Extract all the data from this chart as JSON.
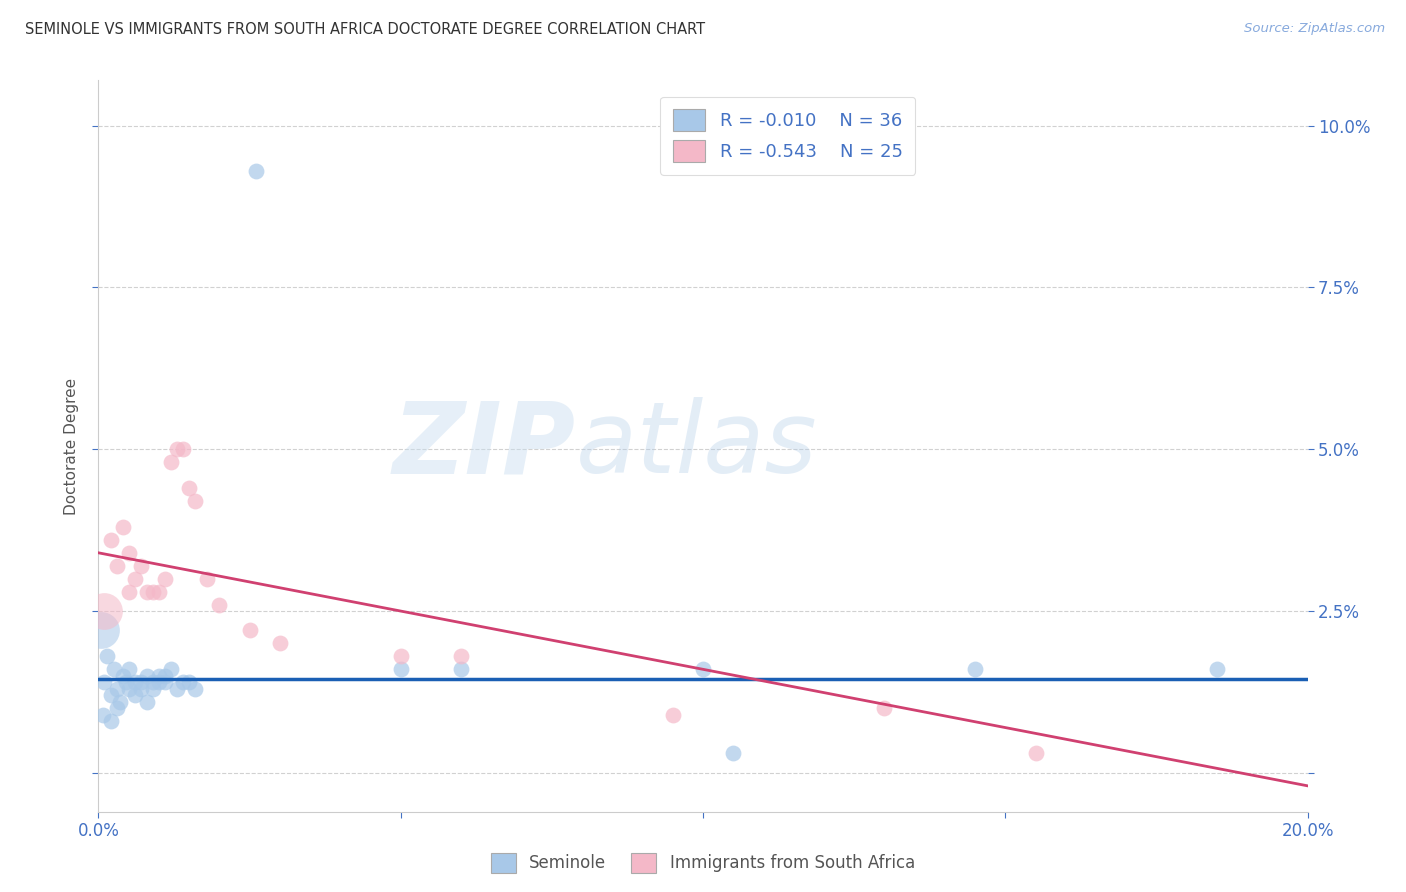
{
  "title": "SEMINOLE VS IMMIGRANTS FROM SOUTH AFRICA DOCTORATE DEGREE CORRELATION CHART",
  "source": "Source: ZipAtlas.com",
  "ylabel": "Doctorate Degree",
  "x_min": 0.0,
  "x_max": 0.2,
  "y_min": -0.006,
  "y_max": 0.107,
  "color_blue": "#a8c8e8",
  "color_blue_line": "#1a5fb4",
  "color_pink": "#f4b8c8",
  "color_pink_line": "#d04070",
  "color_text_blue": "#4472c4",
  "color_grid": "#cccccc",
  "color_source": "#88aadd",
  "watermark_zip": "ZIP",
  "watermark_atlas": "atlas",
  "legend_r1": "R = -0.010",
  "legend_n1": "N = 36",
  "legend_r2": "R = -0.543",
  "legend_n2": "N = 25",
  "blue_line_y": [
    0.0145,
    0.0145
  ],
  "pink_line_y0": 0.034,
  "pink_line_y1": -0.002,
  "seminole_pts": [
    [
      0.0008,
      0.009
    ],
    [
      0.001,
      0.014
    ],
    [
      0.0015,
      0.018
    ],
    [
      0.002,
      0.012
    ],
    [
      0.002,
      0.008
    ],
    [
      0.0025,
      0.016
    ],
    [
      0.003,
      0.013
    ],
    [
      0.003,
      0.01
    ],
    [
      0.0035,
      0.011
    ],
    [
      0.004,
      0.015
    ],
    [
      0.0045,
      0.014
    ],
    [
      0.005,
      0.016
    ],
    [
      0.005,
      0.013
    ],
    [
      0.006,
      0.014
    ],
    [
      0.006,
      0.012
    ],
    [
      0.007,
      0.013
    ],
    [
      0.007,
      0.014
    ],
    [
      0.008,
      0.011
    ],
    [
      0.008,
      0.015
    ],
    [
      0.009,
      0.013
    ],
    [
      0.009,
      0.014
    ],
    [
      0.01,
      0.014
    ],
    [
      0.01,
      0.015
    ],
    [
      0.011,
      0.014
    ],
    [
      0.011,
      0.015
    ],
    [
      0.012,
      0.016
    ],
    [
      0.013,
      0.013
    ],
    [
      0.014,
      0.014
    ],
    [
      0.015,
      0.014
    ],
    [
      0.016,
      0.013
    ],
    [
      0.05,
      0.016
    ],
    [
      0.06,
      0.016
    ],
    [
      0.1,
      0.016
    ],
    [
      0.105,
      0.003
    ],
    [
      0.145,
      0.016
    ],
    [
      0.185,
      0.016
    ]
  ],
  "seminole_outlier": [
    0.026,
    0.093
  ],
  "seminole_large": [
    0.0005,
    0.022
  ],
  "sa_pts": [
    [
      0.002,
      0.036
    ],
    [
      0.003,
      0.032
    ],
    [
      0.004,
      0.038
    ],
    [
      0.005,
      0.034
    ],
    [
      0.005,
      0.028
    ],
    [
      0.006,
      0.03
    ],
    [
      0.007,
      0.032
    ],
    [
      0.008,
      0.028
    ],
    [
      0.009,
      0.028
    ],
    [
      0.01,
      0.028
    ],
    [
      0.011,
      0.03
    ],
    [
      0.012,
      0.048
    ],
    [
      0.013,
      0.05
    ],
    [
      0.014,
      0.05
    ],
    [
      0.015,
      0.044
    ],
    [
      0.016,
      0.042
    ],
    [
      0.018,
      0.03
    ],
    [
      0.02,
      0.026
    ],
    [
      0.025,
      0.022
    ],
    [
      0.03,
      0.02
    ],
    [
      0.05,
      0.018
    ],
    [
      0.06,
      0.018
    ],
    [
      0.095,
      0.009
    ],
    [
      0.13,
      0.01
    ],
    [
      0.155,
      0.003
    ]
  ],
  "sa_large": [
    0.001,
    0.025
  ]
}
